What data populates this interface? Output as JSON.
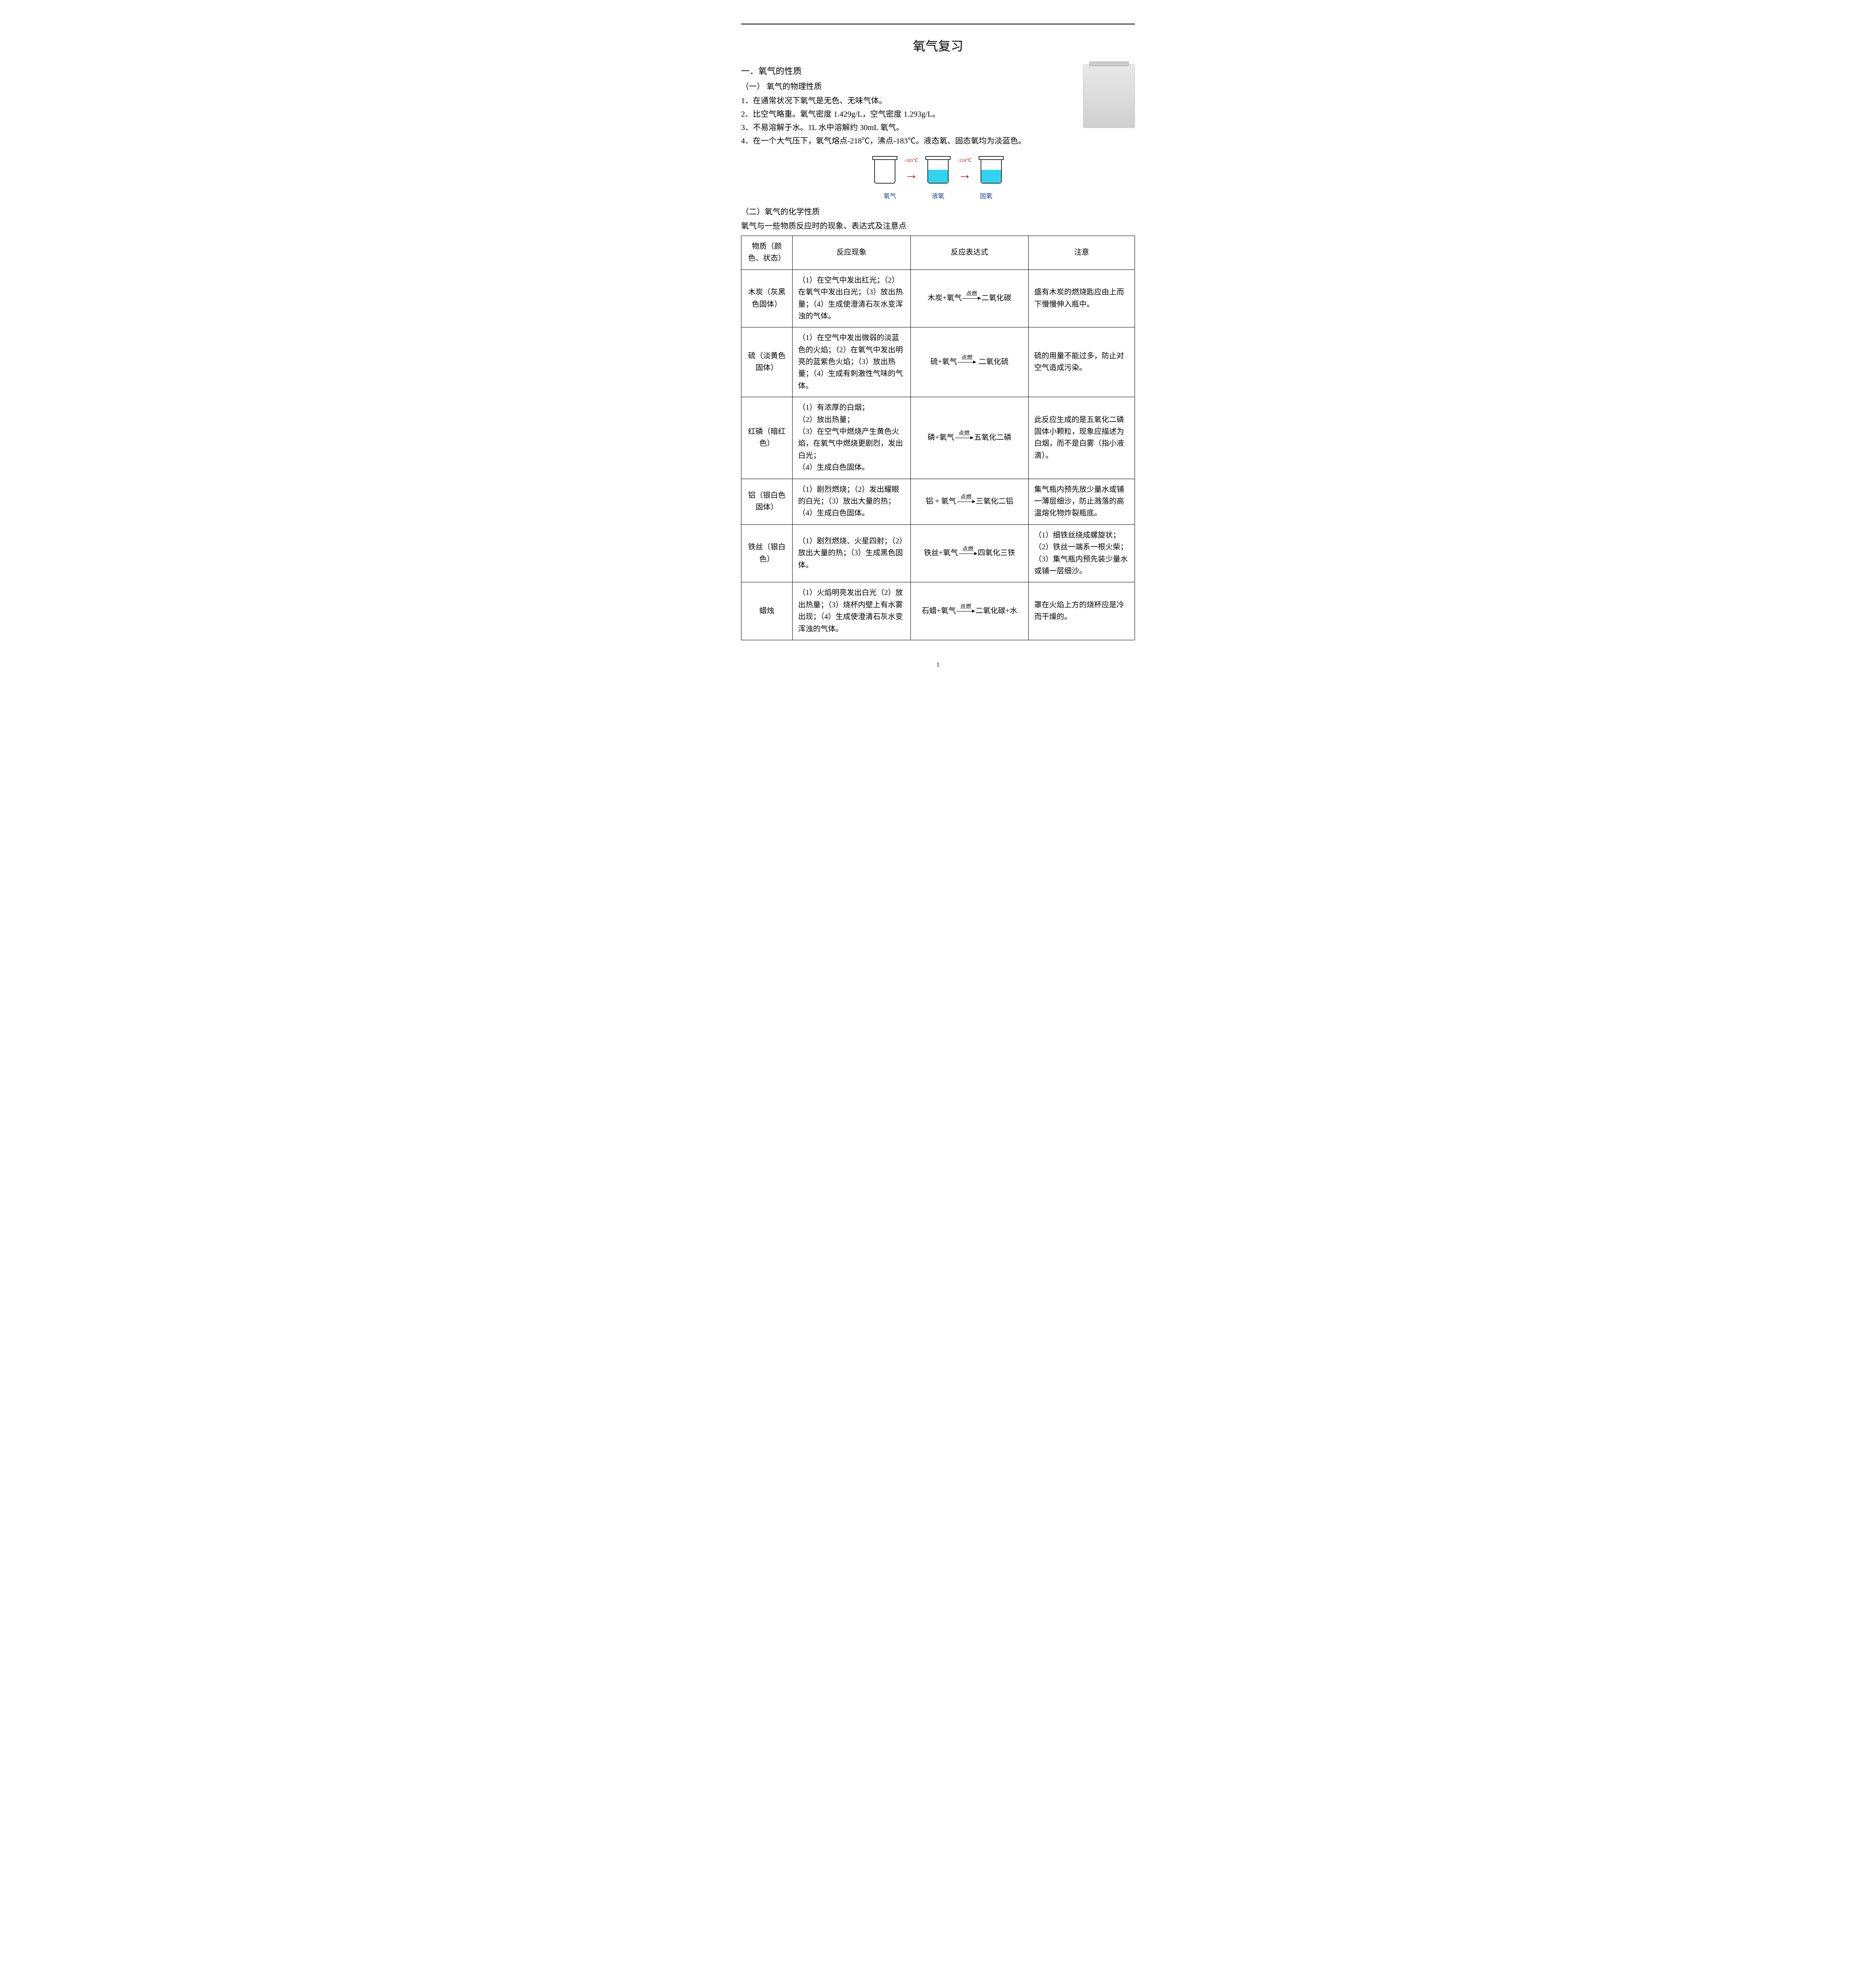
{
  "title": "氧气复习",
  "section1": {
    "heading": "一．氧气的性质",
    "sub1": {
      "heading": "（一） 氧气的物理性质",
      "lines": [
        "1．在通常状况下氧气是无色、无味气体。",
        "2．比空气略重。氧气密度 1.429g/L，空气密度 1.293g/L。",
        "3．不易溶解于水。1L 水中溶解约 30mL 氧气。",
        "4．在一个大气压下，氧气熔点-218℃，沸点-183℃。液态氧、固态氧均为淡蓝色。"
      ]
    },
    "diagram": {
      "temps": [
        "-183℃",
        "-218℃"
      ],
      "labels": [
        "氧气",
        "液氧",
        "固氧"
      ]
    },
    "sub2": {
      "heading": "（二）氧气的化学性质",
      "intro": "氧气与一些物质反应时的现象、表达式及注意点",
      "columns": [
        "物质（颜色、状态）",
        "反应现象",
        "反应表达式",
        "注意"
      ],
      "condition": "点燃",
      "rows": [
        {
          "substance": "木炭（灰黑色固体）",
          "phenomenon": "（1）在空气中发出红光；（2）在氧气中发出白光；（3）放出热量；（4）生成使澄清石灰水变浑浊的气体。",
          "lhs": "木炭+氧气",
          "rhs": "二氧化碳",
          "note": "盛有木炭的燃烧匙应由上而下慢慢伸入瓶中。"
        },
        {
          "substance": "硫（淡黄色固体）",
          "phenomenon": "（1）在空气中发出微弱的淡蓝色的火焰；（2）在氧气中发出明亮的蓝紫色火焰；（3）放出热量；（4）生成有刺激性气味的气体。",
          "lhs": "硫+氧气",
          "rhs": " 二氧化硫",
          "note": "硫的用量不能过多，防止对空气造成污染。"
        },
        {
          "substance": "红磷（暗红色）",
          "phenomenon": "（1）有浓厚的白烟；\n（2）放出热量；\n（3）在空气中燃烧产生黄色火焰，在氧气中燃烧更剧烈，发出白光；\n（4）生成白色固体。",
          "lhs": "磷+氧气",
          "rhs": "五氧化二磷",
          "note": "此反应生成的是五氧化二磷固体小颗粒，现象应描述为白烟，而不是白雾（指小液滴）。"
        },
        {
          "substance": "铝（银白色固体）",
          "phenomenon": "（1）剧烈燃烧；（2）发出耀眼的白光；（3）放出大量的热；（4）生成白色固体。",
          "lhs": "铝 + 氧气",
          "rhs": "三氧化二铝",
          "note": "集气瓶内预先放少量水或铺一薄层细沙，防止溅落的高温熔化物炸裂瓶底。"
        },
        {
          "substance": "铁丝（银白色）",
          "phenomenon": "（1）剧烈燃烧、火星四射；（2）放出大量的热；（3）生成黑色固体。",
          "lhs": "铁丝+氧气",
          "rhs": "四氧化三铁",
          "note": "（1）细铁丝绕成螺旋状；（2）铁丝一端系一根火柴；（3）集气瓶内预先装少量水或铺一层细沙。"
        },
        {
          "substance": "蜡烛",
          "phenomenon": "（1）火焰明亮发出白光（2）放出热量；（3）烧杯内壁上有水雾出现；（4）生成使澄清石灰水变浑浊的气体。",
          "lhs": "石蜡+氧气",
          "rhs": "二氧化碳+水",
          "note": "罩在火焰上方的烧杯应是冷而干燥的。"
        }
      ]
    }
  },
  "pagenum": "1",
  "colors": {
    "arrow_red": "#b00000",
    "caption_blue": "#2040a0",
    "liquid_cyan": "#2fd5ef",
    "text": "#000000",
    "background": "#ffffff"
  }
}
